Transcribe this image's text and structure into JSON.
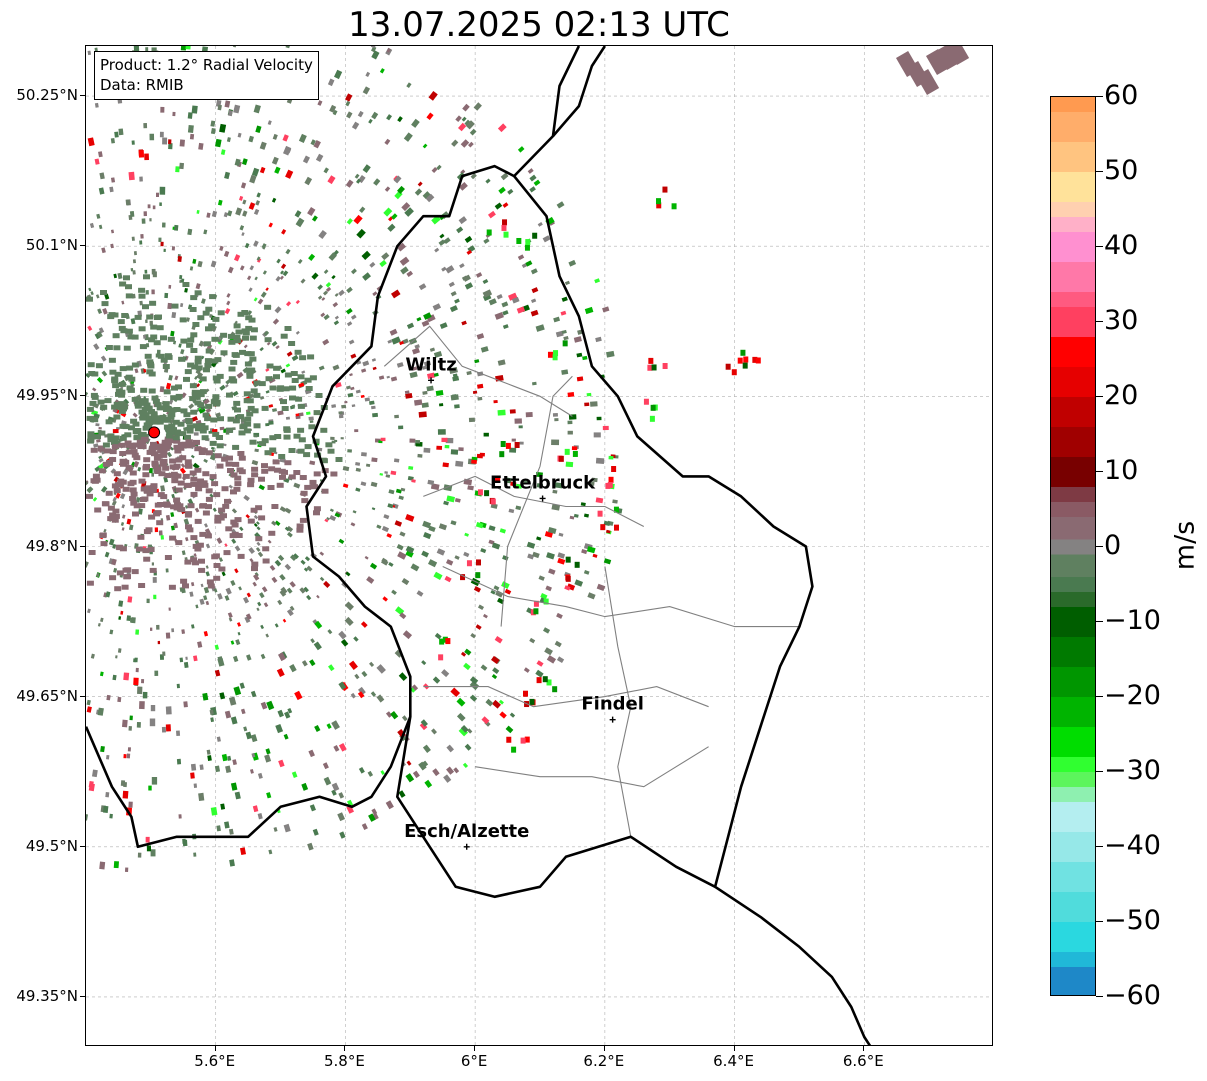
{
  "title": "13.07.2025 02:13 UTC",
  "info_box": {
    "product": "Product: 1.2° Radial Velocity",
    "source": "Data: RMIB"
  },
  "map": {
    "lon_range": [
      5.4,
      6.8
    ],
    "lat_range": [
      49.3,
      50.3
    ],
    "x_ticks": [
      {
        "value": 5.6,
        "label": "5.6°E"
      },
      {
        "value": 5.8,
        "label": "5.8°E"
      },
      {
        "value": 6.0,
        "label": "6°E"
      },
      {
        "value": 6.2,
        "label": "6.2°E"
      },
      {
        "value": 6.4,
        "label": "6.4°E"
      },
      {
        "value": 6.6,
        "label": "6.6°E"
      }
    ],
    "y_ticks": [
      {
        "value": 50.25,
        "label": "50.25°N"
      },
      {
        "value": 50.1,
        "label": "50.1°N"
      },
      {
        "value": 49.95,
        "label": "49.95°N"
      },
      {
        "value": 49.8,
        "label": "49.8°N"
      },
      {
        "value": 49.65,
        "label": "49.65°N"
      },
      {
        "value": 49.5,
        "label": "49.5°N"
      },
      {
        "value": 49.35,
        "label": "49.35°N"
      }
    ],
    "radar_site": {
      "lon": 5.505,
      "lat": 49.914
    },
    "cities": [
      {
        "name": "Wiltz",
        "lon": 5.932,
        "lat": 49.966
      },
      {
        "name": "Ettelbruck",
        "lon": 6.104,
        "lat": 49.848
      },
      {
        "name": "Findel",
        "lon": 6.212,
        "lat": 49.627
      },
      {
        "name": "Esch/Alzette",
        "lon": 5.987,
        "lat": 49.5
      }
    ],
    "colors": {
      "border": "#000000",
      "canton_lines": "#808080",
      "grid": "#b0b0b0",
      "radar_site": "#ff0000"
    }
  },
  "colorbar": {
    "unit": "m/s",
    "range": [
      -60,
      60
    ],
    "ticks": [
      {
        "value": 60,
        "label": "60"
      },
      {
        "value": 50,
        "label": "50"
      },
      {
        "value": 40,
        "label": "40"
      },
      {
        "value": 30,
        "label": "30"
      },
      {
        "value": 20,
        "label": "20"
      },
      {
        "value": 10,
        "label": "10"
      },
      {
        "value": 0,
        "label": "0"
      },
      {
        "value": -10,
        "label": "−10"
      },
      {
        "value": -20,
        "label": "−20"
      },
      {
        "value": -30,
        "label": "−30"
      },
      {
        "value": -40,
        "label": "−40"
      },
      {
        "value": -50,
        "label": "−50"
      },
      {
        "value": -60,
        "label": "−60"
      }
    ],
    "stops": [
      {
        "from": 58,
        "to": 60,
        "color": "#ff9a50"
      },
      {
        "from": 54,
        "to": 58,
        "color": "#ffad6a"
      },
      {
        "from": 50,
        "to": 54,
        "color": "#ffc480"
      },
      {
        "from": 46,
        "to": 50,
        "color": "#ffe29a"
      },
      {
        "from": 44,
        "to": 46,
        "color": "#ffd0b0"
      },
      {
        "from": 42,
        "to": 44,
        "color": "#ffb0c8"
      },
      {
        "from": 38,
        "to": 42,
        "color": "#ff90d0"
      },
      {
        "from": 34,
        "to": 38,
        "color": "#ff78a8"
      },
      {
        "from": 32,
        "to": 34,
        "color": "#ff5a80"
      },
      {
        "from": 28,
        "to": 32,
        "color": "#ff4060"
      },
      {
        "from": 24,
        "to": 28,
        "color": "#ff0000"
      },
      {
        "from": 20,
        "to": 24,
        "color": "#e60000"
      },
      {
        "from": 16,
        "to": 20,
        "color": "#c00000"
      },
      {
        "from": 12,
        "to": 16,
        "color": "#a00000"
      },
      {
        "from": 8,
        "to": 12,
        "color": "#780000"
      },
      {
        "from": 6,
        "to": 8,
        "color": "#7e3a44"
      },
      {
        "from": 4,
        "to": 6,
        "color": "#8a5a64"
      },
      {
        "from": 1,
        "to": 4,
        "color": "#8a6a72"
      },
      {
        "from": -1,
        "to": 1,
        "color": "#848282"
      },
      {
        "from": -4,
        "to": -1,
        "color": "#5f8060"
      },
      {
        "from": -6,
        "to": -4,
        "color": "#4a7a50"
      },
      {
        "from": -8,
        "to": -6,
        "color": "#2a6a2a"
      },
      {
        "from": -12,
        "to": -8,
        "color": "#005e00"
      },
      {
        "from": -16,
        "to": -12,
        "color": "#007a00"
      },
      {
        "from": -20,
        "to": -16,
        "color": "#009600"
      },
      {
        "from": -24,
        "to": -20,
        "color": "#00b400"
      },
      {
        "from": -28,
        "to": -24,
        "color": "#00dd00"
      },
      {
        "from": -30,
        "to": -28,
        "color": "#30ff30"
      },
      {
        "from": -32,
        "to": -30,
        "color": "#5cf55c"
      },
      {
        "from": -34,
        "to": -32,
        "color": "#8ef0b0"
      },
      {
        "from": -38,
        "to": -34,
        "color": "#b4eef0"
      },
      {
        "from": -42,
        "to": -38,
        "color": "#96e8e8"
      },
      {
        "from": -46,
        "to": -42,
        "color": "#70e2e2"
      },
      {
        "from": -50,
        "to": -46,
        "color": "#50dcdc"
      },
      {
        "from": -54,
        "to": -50,
        "color": "#2ad8e0"
      },
      {
        "from": -56,
        "to": -54,
        "color": "#20b8d8"
      },
      {
        "from": -60,
        "to": -56,
        "color": "#1e88c8"
      }
    ]
  }
}
